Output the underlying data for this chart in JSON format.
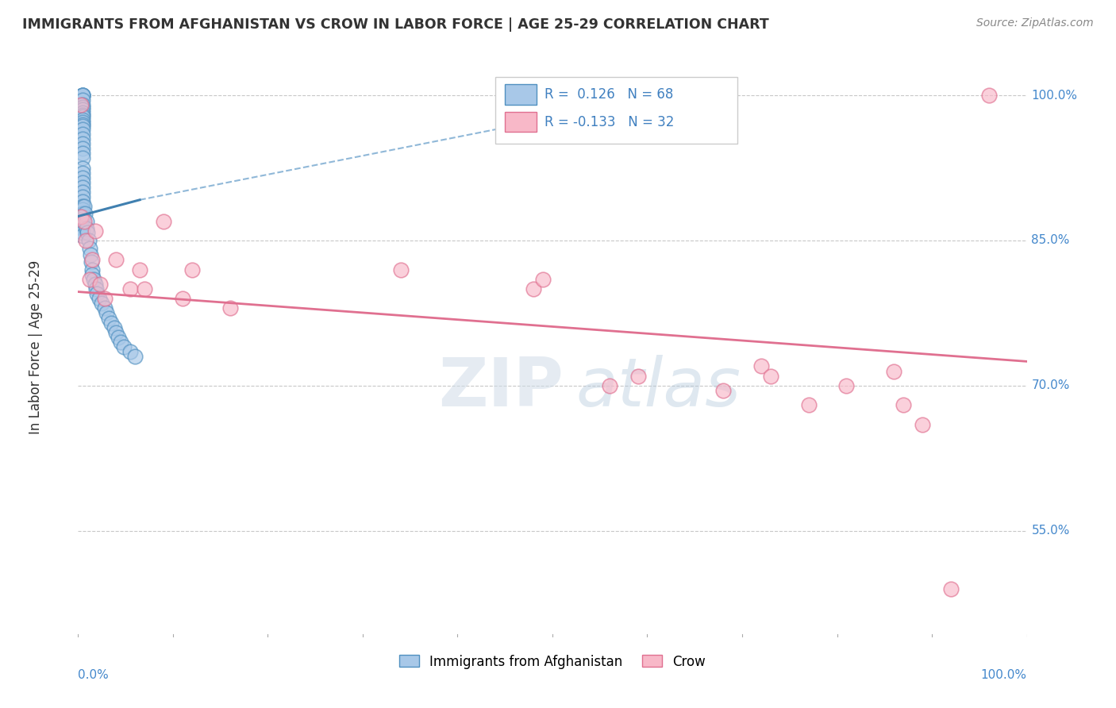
{
  "title": "IMMIGRANTS FROM AFGHANISTAN VS CROW IN LABOR FORCE | AGE 25-29 CORRELATION CHART",
  "source": "Source: ZipAtlas.com",
  "ylabel": "In Labor Force | Age 25-29",
  "xlim": [
    0.0,
    1.0
  ],
  "ylim": [
    0.44,
    1.04
  ],
  "yticks": [
    0.55,
    0.7,
    0.85,
    1.0
  ],
  "ytick_labels": [
    "55.0%",
    "70.0%",
    "85.0%",
    "100.0%"
  ],
  "R_blue": 0.126,
  "N_blue": 68,
  "R_pink": -0.133,
  "N_pink": 32,
  "legend_labels": [
    "Immigrants from Afghanistan",
    "Crow"
  ],
  "blue_fill": "#a8c8e8",
  "blue_edge": "#5090c0",
  "pink_fill": "#f8b8c8",
  "pink_edge": "#e07090",
  "blue_line_color": "#4080b0",
  "pink_line_color": "#e07090",
  "dashed_line_color": "#90b8d8",
  "watermark_zip": "ZIP",
  "watermark_atlas": "atlas",
  "blue_scatter_x": [
    0.005,
    0.005,
    0.005,
    0.005,
    0.005,
    0.005,
    0.005,
    0.005,
    0.005,
    0.005,
    0.005,
    0.005,
    0.005,
    0.005,
    0.005,
    0.005,
    0.005,
    0.005,
    0.005,
    0.005,
    0.005,
    0.005,
    0.005,
    0.005,
    0.005,
    0.005,
    0.005,
    0.005,
    0.005,
    0.005,
    0.005,
    0.005,
    0.005,
    0.005,
    0.005,
    0.005,
    0.005,
    0.005,
    0.005,
    0.005,
    0.006,
    0.007,
    0.009,
    0.009,
    0.01,
    0.011,
    0.012,
    0.013,
    0.014,
    0.015,
    0.015,
    0.016,
    0.018,
    0.019,
    0.02,
    0.022,
    0.025,
    0.028,
    0.03,
    0.032,
    0.035,
    0.038,
    0.04,
    0.042,
    0.045,
    0.048,
    0.055,
    0.06
  ],
  "blue_scatter_y": [
    1.0,
    1.0,
    1.0,
    1.0,
    0.995,
    0.99,
    0.988,
    0.985,
    0.982,
    0.98,
    0.978,
    0.975,
    0.972,
    0.97,
    0.968,
    0.965,
    0.96,
    0.955,
    0.95,
    0.945,
    0.94,
    0.935,
    0.925,
    0.92,
    0.915,
    0.91,
    0.905,
    0.9,
    0.895,
    0.89,
    0.885,
    0.882,
    0.878,
    0.875,
    0.872,
    0.87,
    0.865,
    0.862,
    0.858,
    0.855,
    0.885,
    0.878,
    0.87,
    0.862,
    0.858,
    0.85,
    0.842,
    0.835,
    0.828,
    0.82,
    0.815,
    0.81,
    0.805,
    0.8,
    0.795,
    0.79,
    0.785,
    0.78,
    0.775,
    0.77,
    0.765,
    0.76,
    0.755,
    0.75,
    0.745,
    0.74,
    0.735,
    0.73
  ],
  "pink_scatter_x": [
    0.003,
    0.003,
    0.006,
    0.008,
    0.012,
    0.015,
    0.018,
    0.023,
    0.028,
    0.04,
    0.055,
    0.065,
    0.07,
    0.09,
    0.11,
    0.12,
    0.16,
    0.34,
    0.48,
    0.49,
    0.56,
    0.59,
    0.68,
    0.72,
    0.73,
    0.77,
    0.81,
    0.86,
    0.87,
    0.89,
    0.92,
    0.96
  ],
  "pink_scatter_y": [
    0.99,
    0.875,
    0.87,
    0.85,
    0.81,
    0.83,
    0.86,
    0.805,
    0.79,
    0.83,
    0.8,
    0.82,
    0.8,
    0.87,
    0.79,
    0.82,
    0.78,
    0.82,
    0.8,
    0.81,
    0.7,
    0.71,
    0.695,
    0.72,
    0.71,
    0.68,
    0.7,
    0.715,
    0.68,
    0.66,
    0.49,
    1.0
  ],
  "blue_trend_x0": 0.0,
  "blue_trend_x1": 0.065,
  "blue_trend_y0": 0.875,
  "blue_trend_y1": 0.892,
  "dashed_trend_x0": 0.065,
  "dashed_trend_x1": 0.57,
  "dashed_trend_y0": 0.892,
  "dashed_trend_y1": 0.99,
  "pink_trend_x0": 0.0,
  "pink_trend_x1": 1.0,
  "pink_trend_y0": 0.797,
  "pink_trend_y1": 0.725
}
